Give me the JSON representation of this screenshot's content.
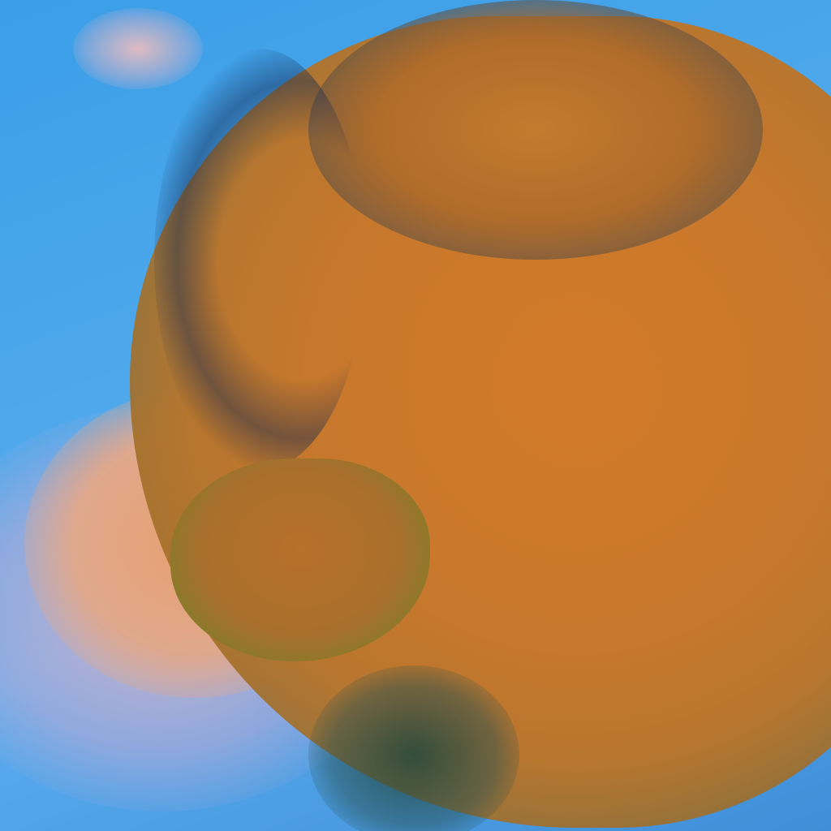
{
  "image": {
    "subject": "satellite-false-color",
    "colors": {
      "ocean": "#4aa6ea",
      "cloud_orange": "#c8782c",
      "cloud_pink": "#e0a88c",
      "edge_dark_green": "#1f4a2a"
    }
  }
}
